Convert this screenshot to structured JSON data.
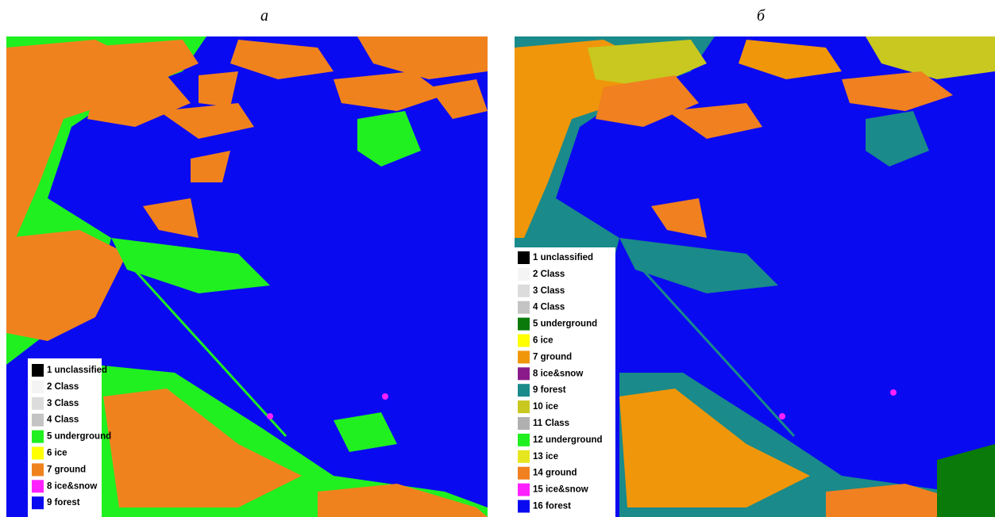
{
  "panels": [
    {
      "label": "а",
      "legend": [
        {
          "label": "1 unclassified",
          "color": "#000000"
        },
        {
          "label": "2 Class",
          "color": "#f4f4f4"
        },
        {
          "label": "3 Class",
          "color": "#dcdcdc"
        },
        {
          "label": "4 Class",
          "color": "#c4c4c4"
        },
        {
          "label": "5 underground",
          "color": "#20f020"
        },
        {
          "label": "6 ice",
          "color": "#ffff00"
        },
        {
          "label": "7 ground",
          "color": "#f0821e"
        },
        {
          "label": "8 ice&snow",
          "color": "#ff20ff"
        },
        {
          "label": "9 forest",
          "color": "#0a0af0"
        }
      ]
    },
    {
      "label": "б",
      "legend": [
        {
          "label": "1 unclassified",
          "color": "#000000"
        },
        {
          "label": "2 Class",
          "color": "#f4f4f4"
        },
        {
          "label": "3 Class",
          "color": "#dcdcdc"
        },
        {
          "label": "4 Class",
          "color": "#c4c4c4"
        },
        {
          "label": "5 underground",
          "color": "#0a7a0a"
        },
        {
          "label": "6 ice",
          "color": "#ffff00"
        },
        {
          "label": "7 ground",
          "color": "#f0960a"
        },
        {
          "label": "8 ice&snow",
          "color": "#8a1a8a"
        },
        {
          "label": "9 forest",
          "color": "#1a8a8a"
        },
        {
          "label": "10 ice",
          "color": "#c8c820"
        },
        {
          "label": "11 Class",
          "color": "#b0b0b0"
        },
        {
          "label": "12 underground",
          "color": "#20f020"
        },
        {
          "label": "13 ice",
          "color": "#e6e620"
        },
        {
          "label": "14 ground",
          "color": "#f08020"
        },
        {
          "label": "15 ice&snow",
          "color": "#ff20ff"
        },
        {
          "label": "16 forest",
          "color": "#0a0af0"
        }
      ]
    }
  ]
}
